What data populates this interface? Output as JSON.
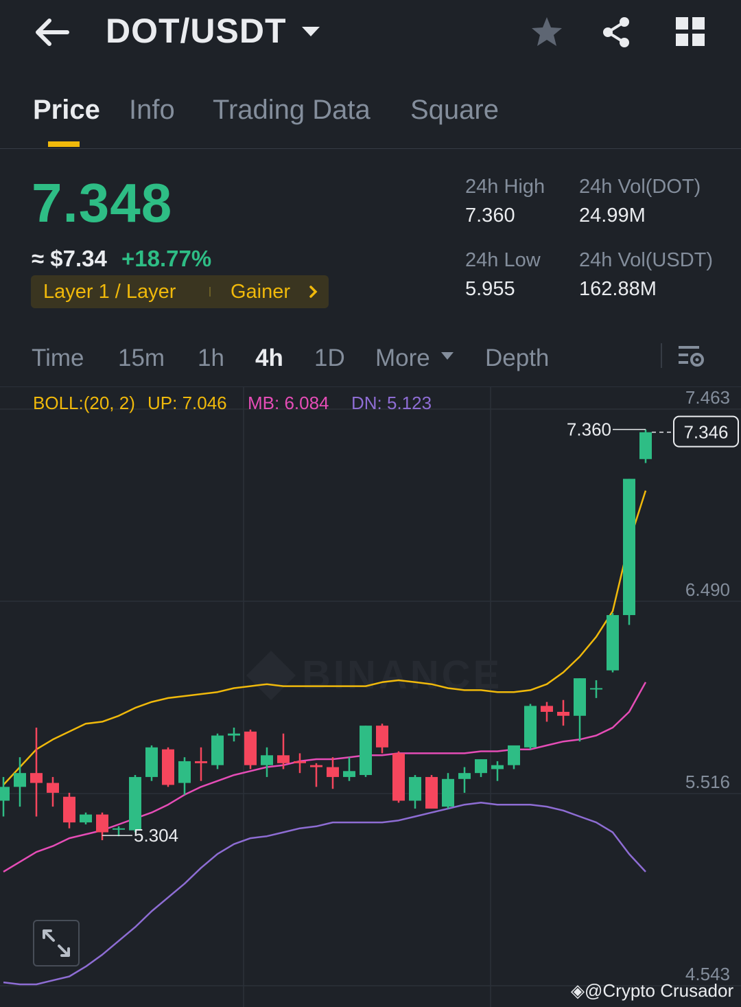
{
  "header": {
    "pair": "DOT/USDT",
    "icons": [
      "back-arrow-icon",
      "caret-down-icon",
      "star-icon",
      "share-icon",
      "grid-icon"
    ]
  },
  "tabs": [
    {
      "label": "Price",
      "active": true
    },
    {
      "label": "Info",
      "active": false
    },
    {
      "label": "Trading Data",
      "active": false
    },
    {
      "label": "Square",
      "active": false
    }
  ],
  "ticker": {
    "last_price": "7.348",
    "fiat_price": "≈ $7.34",
    "change": "+18.77%",
    "tag_primary": "Layer 1 / Layer",
    "tag_secondary": "Gainer",
    "stats": {
      "high_label": "24h High",
      "high_value": "7.360",
      "low_label": "24h Low",
      "low_value": "5.955",
      "vol_base_label": "24h Vol(DOT)",
      "vol_base_value": "24.99M",
      "vol_quote_label": "24h Vol(USDT)",
      "vol_quote_value": "162.88M"
    }
  },
  "intervals": [
    {
      "label": "Time",
      "active": false
    },
    {
      "label": "15m",
      "active": false
    },
    {
      "label": "1h",
      "active": false
    },
    {
      "label": "4h",
      "active": true
    },
    {
      "label": "1D",
      "active": false
    },
    {
      "label": "More",
      "active": false
    },
    {
      "label": "Depth",
      "active": false
    }
  ],
  "indicator": {
    "name": "BOLL:(20, 2)",
    "up": "UP: 7.046",
    "mb": "MB: 6.084",
    "dn": "DN: 5.123"
  },
  "colors": {
    "up": "#2ebd85",
    "down": "#f6465d",
    "accent": "#f0b90b",
    "boll_up": "#f0b90b",
    "boll_mb": "#e64db7",
    "boll_dn": "#8e6dd4"
  },
  "chart_data": {
    "type": "candlestick",
    "y_ticks": [
      "7.463",
      "6.490",
      "5.516",
      "4.543"
    ],
    "ylim": [
      4.543,
      7.463
    ],
    "grid": true,
    "high_marker": "7.360",
    "low_marker": "5.304",
    "current_price_tag": "7.346",
    "watermark": "BINANCE",
    "candles": [
      {
        "o": 5.48,
        "h": 5.6,
        "l": 5.4,
        "c": 5.55
      },
      {
        "o": 5.55,
        "h": 5.7,
        "l": 5.45,
        "c": 5.62
      },
      {
        "o": 5.62,
        "h": 5.85,
        "l": 5.4,
        "c": 5.57
      },
      {
        "o": 5.57,
        "h": 5.6,
        "l": 5.45,
        "c": 5.52
      },
      {
        "o": 5.5,
        "h": 5.52,
        "l": 5.34,
        "c": 5.37
      },
      {
        "o": 5.37,
        "h": 5.42,
        "l": 5.36,
        "c": 5.41
      },
      {
        "o": 5.41,
        "h": 5.42,
        "l": 5.28,
        "c": 5.32
      },
      {
        "o": 5.34,
        "h": 5.35,
        "l": 5.3,
        "c": 5.34
      },
      {
        "o": 5.33,
        "h": 5.61,
        "l": 5.32,
        "c": 5.6
      },
      {
        "o": 5.6,
        "h": 5.76,
        "l": 5.58,
        "c": 5.75
      },
      {
        "o": 5.74,
        "h": 5.75,
        "l": 5.55,
        "c": 5.56
      },
      {
        "o": 5.57,
        "h": 5.7,
        "l": 5.51,
        "c": 5.68
      },
      {
        "o": 5.68,
        "h": 5.75,
        "l": 5.58,
        "c": 5.67
      },
      {
        "o": 5.66,
        "h": 5.82,
        "l": 5.64,
        "c": 5.81
      },
      {
        "o": 5.81,
        "h": 5.85,
        "l": 5.78,
        "c": 5.82
      },
      {
        "o": 5.83,
        "h": 5.84,
        "l": 5.64,
        "c": 5.66
      },
      {
        "o": 5.66,
        "h": 5.75,
        "l": 5.6,
        "c": 5.71
      },
      {
        "o": 5.71,
        "h": 5.82,
        "l": 5.64,
        "c": 5.67
      },
      {
        "o": 5.68,
        "h": 5.72,
        "l": 5.62,
        "c": 5.67
      },
      {
        "o": 5.66,
        "h": 5.67,
        "l": 5.55,
        "c": 5.65
      },
      {
        "o": 5.65,
        "h": 5.7,
        "l": 5.54,
        "c": 5.6
      },
      {
        "o": 5.6,
        "h": 5.7,
        "l": 5.58,
        "c": 5.63
      },
      {
        "o": 5.61,
        "h": 5.86,
        "l": 5.6,
        "c": 5.86
      },
      {
        "o": 5.86,
        "h": 5.87,
        "l": 5.72,
        "c": 5.75
      },
      {
        "o": 5.72,
        "h": 5.73,
        "l": 5.47,
        "c": 5.48
      },
      {
        "o": 5.48,
        "h": 5.61,
        "l": 5.44,
        "c": 5.6
      },
      {
        "o": 5.6,
        "h": 5.61,
        "l": 5.44,
        "c": 5.44
      },
      {
        "o": 5.45,
        "h": 5.62,
        "l": 5.44,
        "c": 5.59
      },
      {
        "o": 5.59,
        "h": 5.65,
        "l": 5.52,
        "c": 5.62
      },
      {
        "o": 5.62,
        "h": 5.69,
        "l": 5.6,
        "c": 5.69
      },
      {
        "o": 5.64,
        "h": 5.68,
        "l": 5.58,
        "c": 5.66
      },
      {
        "o": 5.66,
        "h": 5.75,
        "l": 5.64,
        "c": 5.76
      },
      {
        "o": 5.75,
        "h": 5.97,
        "l": 5.74,
        "c": 5.96
      },
      {
        "o": 5.96,
        "h": 5.98,
        "l": 5.88,
        "c": 5.93
      },
      {
        "o": 5.93,
        "h": 5.99,
        "l": 5.86,
        "c": 5.91
      },
      {
        "o": 5.91,
        "h": 6.1,
        "l": 5.78,
        "c": 6.1
      },
      {
        "o": 6.05,
        "h": 6.09,
        "l": 6.0,
        "c": 6.05
      },
      {
        "o": 6.14,
        "h": 6.43,
        "l": 6.13,
        "c": 6.42
      },
      {
        "o": 6.42,
        "h": 7.11,
        "l": 6.37,
        "c": 7.11
      },
      {
        "o": 7.21,
        "h": 7.36,
        "l": 7.19,
        "c": 7.346
      }
    ],
    "boll_upper": [
      5.56,
      5.65,
      5.74,
      5.79,
      5.83,
      5.87,
      5.88,
      5.91,
      5.95,
      5.98,
      6.0,
      6.01,
      6.02,
      6.03,
      6.05,
      6.06,
      6.07,
      6.06,
      6.06,
      6.06,
      6.06,
      6.06,
      6.06,
      6.08,
      6.09,
      6.08,
      6.07,
      6.05,
      6.04,
      6.04,
      6.03,
      6.03,
      6.04,
      6.07,
      6.13,
      6.21,
      6.31,
      6.44,
      6.79,
      7.05
    ],
    "boll_mid": [
      5.12,
      5.17,
      5.22,
      5.25,
      5.29,
      5.31,
      5.33,
      5.36,
      5.39,
      5.42,
      5.46,
      5.51,
      5.55,
      5.58,
      5.61,
      5.63,
      5.65,
      5.66,
      5.68,
      5.69,
      5.69,
      5.7,
      5.71,
      5.71,
      5.72,
      5.72,
      5.72,
      5.72,
      5.72,
      5.73,
      5.73,
      5.74,
      5.74,
      5.76,
      5.78,
      5.79,
      5.81,
      5.85,
      5.93,
      6.08
    ],
    "boll_lower": [
      4.56,
      4.55,
      4.55,
      4.57,
      4.59,
      4.64,
      4.7,
      4.77,
      4.84,
      4.92,
      4.99,
      5.06,
      5.14,
      5.21,
      5.26,
      5.29,
      5.3,
      5.32,
      5.34,
      5.35,
      5.37,
      5.37,
      5.37,
      5.37,
      5.38,
      5.4,
      5.42,
      5.44,
      5.46,
      5.47,
      5.46,
      5.46,
      5.46,
      5.45,
      5.43,
      5.4,
      5.37,
      5.32,
      5.21,
      5.12
    ]
  },
  "footer": {
    "credit": "@Crypto Crusador"
  }
}
